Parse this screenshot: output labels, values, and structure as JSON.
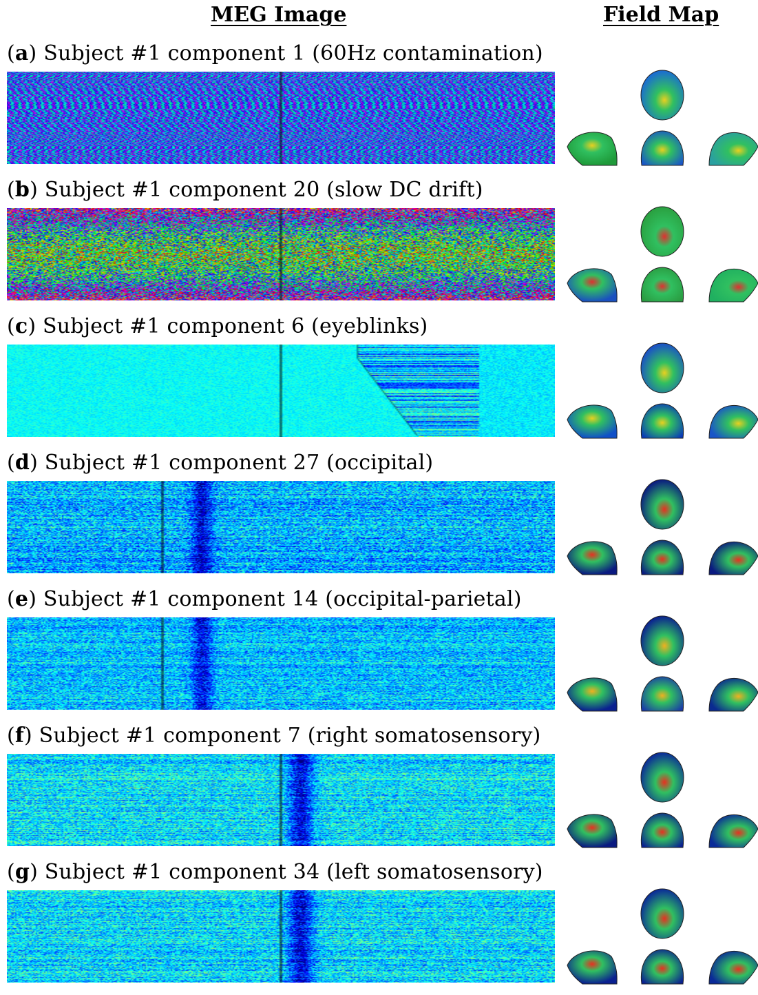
{
  "headers": {
    "meg_image": "MEG Image",
    "field_map": "Field Map"
  },
  "panels": [
    {
      "letter": "a",
      "caption": "Subject #1 component 1 (60Hz contamination)",
      "pattern": "60hz",
      "field_map_colors": {
        "top": "#1a6ad4",
        "left": "#1f9a3a",
        "back": "#1a55c8",
        "right": "#2aa0a0",
        "hot": "#e8d020"
      }
    },
    {
      "letter": "b",
      "caption": "Subject #1 component 20 (slow DC drift)",
      "pattern": "drift",
      "field_map_colors": {
        "top": "#2aa040",
        "left": "#1a50c0",
        "back": "#2a9a40",
        "right": "#20b060",
        "hot": "#e03030"
      }
    },
    {
      "letter": "c",
      "caption": "Subject #1 component 6 (eyeblinks)",
      "pattern": "eyeblink",
      "field_map_colors": {
        "top": "#1a4fc8",
        "left": "#1050c8",
        "back": "#0a3ab8",
        "right": "#1a55c8",
        "hot": "#e8d020"
      }
    },
    {
      "letter": "d",
      "caption": "Subject #1 component 27 (occipital)",
      "pattern": "occipital",
      "field_map_colors": {
        "top": "#0a1a80",
        "left": "#0a1a80",
        "back": "#0a1a80",
        "right": "#0a1a80",
        "hot": "#e83020"
      }
    },
    {
      "letter": "e",
      "caption": "Subject #1 component 14 (occipital-parietal)",
      "pattern": "occpar",
      "field_map_colors": {
        "top": "#0a2090",
        "left": "#0a2090",
        "back": "#1a3aa8",
        "right": "#0a2a90",
        "hot": "#f0b020"
      }
    },
    {
      "letter": "f",
      "caption": "Subject #1 component 7 (right somatosensory)",
      "pattern": "rsoma",
      "field_map_colors": {
        "top": "#0a2a98",
        "left": "#0a1a80",
        "back": "#0a2090",
        "right": "#0a2a98",
        "hot": "#e83020"
      }
    },
    {
      "letter": "g",
      "caption": "Subject #1 component 34 (left somatosensory)",
      "pattern": "lsoma",
      "field_map_colors": {
        "top": "#0a2a98",
        "left": "#0a2090",
        "back": "#0a2090",
        "right": "#0a2a98",
        "hot": "#e83020"
      }
    }
  ]
}
